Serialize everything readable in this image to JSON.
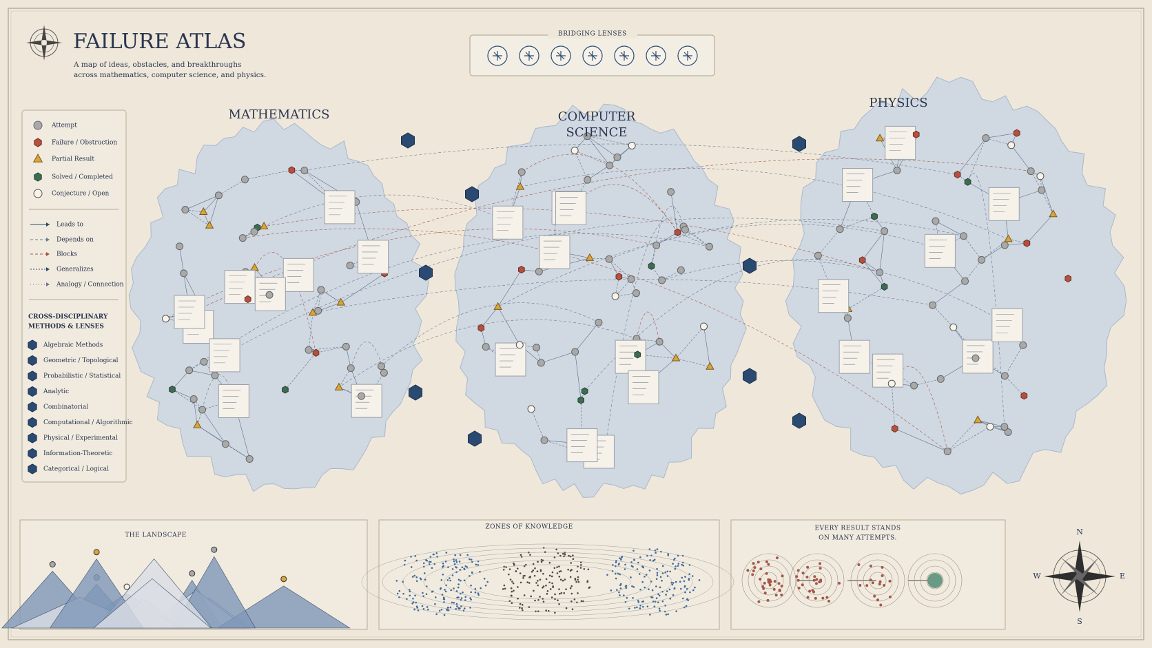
{
  "header": {
    "title": "FAILURE ATLAS",
    "subtitle": [
      "A map of ideas, obstacles, and breakthroughs",
      "across mathematics, computer science, and physics."
    ]
  },
  "bridging_lenses": {
    "title": "BRIDGING LENSES"
  },
  "legend": {
    "nodes": [
      "Attempt",
      "Failure / Obstruction",
      "Partial Result",
      "Solved / Completed",
      "Conjecture / Open"
    ],
    "edges": [
      "Leads to",
      "Depends on",
      "Blocks",
      "Generalizes",
      "Analogy / Connection"
    ],
    "methods_title": [
      "CROSS-DISCIPLINARY",
      "METHODS & LENSES"
    ],
    "methods": [
      "Algebraic Methods",
      "Geometric / Topological",
      "Probabilistic / Statistical",
      "Analytic",
      "Combinatorial",
      "Computational / Algorithmic",
      "Physical / Experimental",
      "Information-Theoretic",
      "Categorical / Logical"
    ]
  },
  "regions": {
    "mathematics": "MATHEMATICS",
    "computer_science": [
      "COMPUTER",
      "SCIENCE"
    ],
    "physics": "PHYSICS"
  },
  "panels": {
    "landscape": "THE LANDSCAPE",
    "zones": "ZONES OF KNOWLEDGE",
    "results": [
      "EVERY RESULT STANDS",
      "ON MANY ATTEMPTS."
    ]
  },
  "compass": {
    "n": "N",
    "s": "S",
    "w": "W",
    "e": "E"
  }
}
